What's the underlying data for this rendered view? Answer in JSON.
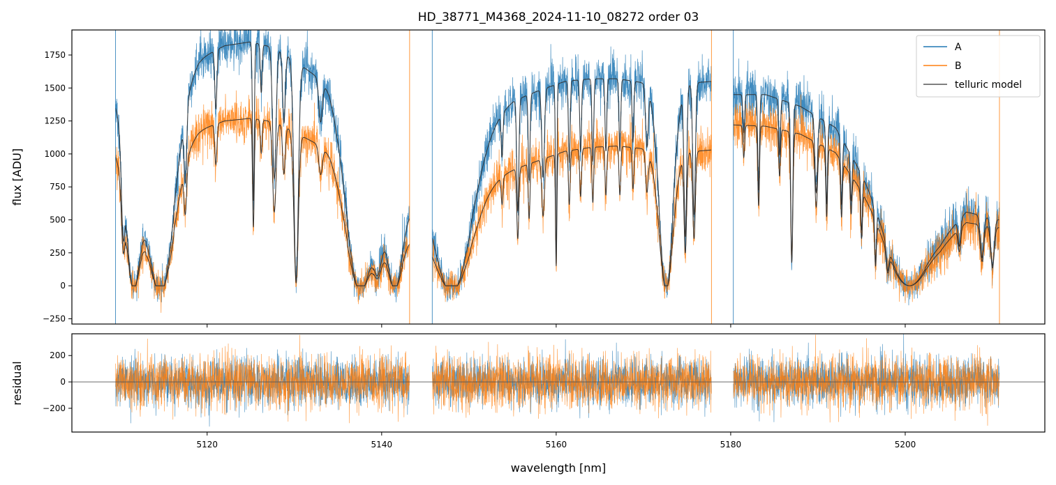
{
  "chart_data": {
    "type": "line",
    "title": "HD_38771_M4368_2024-11-10_08272  order 03",
    "xlabel": "wavelength [nm]",
    "xlim": [
      5104.5,
      5216
    ],
    "x_ticks": [
      5120,
      5140,
      5160,
      5180,
      5200
    ],
    "x_tick_labels": [
      "5120",
      "5140",
      "5160",
      "5180",
      "5200"
    ],
    "colors": {
      "A": "#1f77b4",
      "B": "#ff7f0e",
      "model": "#333333"
    },
    "segments": [
      [
        5109.5,
        5143.2
      ],
      [
        5145.8,
        5177.8
      ],
      [
        5180.3,
        5210.8
      ]
    ],
    "top_panel": {
      "ylabel": "flux [ADU]",
      "ylim": [
        -290,
        1940
      ],
      "y_ticks": [
        -250,
        0,
        250,
        500,
        750,
        1000,
        1250,
        1500,
        1750
      ],
      "y_tick_labels": [
        "−250",
        "0",
        "250",
        "500",
        "750",
        "1000",
        "1250",
        "1500",
        "1750"
      ],
      "legend": {
        "position": "top-right",
        "entries": [
          "A",
          "B",
          "telluric model"
        ]
      },
      "continuum_A": [
        [
          5109.5,
          1450
        ],
        [
          5111,
          1500
        ],
        [
          5113,
          1200
        ],
        [
          5116,
          1500
        ],
        [
          5119,
          1720
        ],
        [
          5122,
          1820
        ],
        [
          5125,
          1850
        ],
        [
          5128,
          1800
        ],
        [
          5131,
          1660
        ],
        [
          5134,
          1520
        ],
        [
          5136,
          1250
        ],
        [
          5138,
          900
        ],
        [
          5140,
          700
        ],
        [
          5143.2,
          680
        ],
        [
          5145.8,
          1000
        ],
        [
          5150,
          1150
        ],
        [
          5152,
          1250
        ],
        [
          5155,
          1400
        ],
        [
          5158,
          1480
        ],
        [
          5161,
          1550
        ],
        [
          5164,
          1570
        ],
        [
          5167,
          1570
        ],
        [
          5170,
          1540
        ],
        [
          5173,
          1500
        ],
        [
          5176,
          1540
        ],
        [
          5177.8,
          1550
        ],
        [
          5180.3,
          1450
        ],
        [
          5184,
          1450
        ],
        [
          5188,
          1360
        ],
        [
          5192,
          1200
        ],
        [
          5195,
          850
        ],
        [
          5198,
          450
        ],
        [
          5200,
          280
        ],
        [
          5204,
          350
        ],
        [
          5207,
          560
        ],
        [
          5210.8,
          500
        ]
      ],
      "continuum_B": [
        [
          5109.5,
          1050
        ],
        [
          5111,
          1080
        ],
        [
          5113,
          900
        ],
        [
          5116,
          1050
        ],
        [
          5119,
          1180
        ],
        [
          5122,
          1250
        ],
        [
          5125,
          1270
        ],
        [
          5128,
          1240
        ],
        [
          5131,
          1130
        ],
        [
          5134,
          1030
        ],
        [
          5136,
          850
        ],
        [
          5138,
          620
        ],
        [
          5140,
          480
        ],
        [
          5143.2,
          420
        ],
        [
          5145.8,
          600
        ],
        [
          5150,
          720
        ],
        [
          5152,
          800
        ],
        [
          5155,
          880
        ],
        [
          5158,
          950
        ],
        [
          5161,
          1020
        ],
        [
          5164,
          1050
        ],
        [
          5167,
          1060
        ],
        [
          5170,
          1040
        ],
        [
          5173,
          1000
        ],
        [
          5176,
          1020
        ],
        [
          5177.8,
          1030
        ],
        [
          5180.3,
          1220
        ],
        [
          5184,
          1210
        ],
        [
          5188,
          1150
        ],
        [
          5192,
          1010
        ],
        [
          5195,
          720
        ],
        [
          5198,
          380
        ],
        [
          5200,
          230
        ],
        [
          5204,
          300
        ],
        [
          5207,
          480
        ],
        [
          5210.8,
          440
        ]
      ],
      "absorption_lines": [
        [
          5110.4,
          0.6,
          0.2
        ],
        [
          5111.6,
          0.98,
          0.9
        ],
        [
          5114.6,
          1.0,
          1.6
        ],
        [
          5117.5,
          0.4,
          0.15
        ],
        [
          5121.0,
          0.25,
          0.12
        ],
        [
          5125.3,
          0.65,
          0.1
        ],
        [
          5126.2,
          0.2,
          0.1
        ],
        [
          5127.7,
          0.55,
          0.2
        ],
        [
          5128.8,
          0.3,
          0.15
        ],
        [
          5130.2,
          0.98,
          0.25
        ],
        [
          5133.0,
          0.2,
          0.2
        ],
        [
          5137.6,
          1.0,
          1.5
        ],
        [
          5139.5,
          0.8,
          0.5
        ],
        [
          5141.5,
          1.0,
          0.9
        ],
        [
          5148.0,
          1.0,
          2.2
        ],
        [
          5153.8,
          0.25,
          0.1
        ],
        [
          5155.6,
          0.6,
          0.12
        ],
        [
          5156.9,
          0.45,
          0.1
        ],
        [
          5158.5,
          0.45,
          0.15
        ],
        [
          5160.0,
          0.85,
          0.08
        ],
        [
          5161.5,
          0.4,
          0.1
        ],
        [
          5162.8,
          0.35,
          0.1
        ],
        [
          5164.2,
          0.4,
          0.1
        ],
        [
          5165.7,
          0.35,
          0.1
        ],
        [
          5167.3,
          0.35,
          0.1
        ],
        [
          5168.8,
          0.3,
          0.1
        ],
        [
          5170.4,
          0.3,
          0.15
        ],
        [
          5172.6,
          0.98,
          0.8
        ],
        [
          5174.8,
          0.75,
          0.15
        ],
        [
          5175.8,
          0.65,
          0.15
        ],
        [
          5181.5,
          0.2,
          0.1
        ],
        [
          5183.2,
          0.5,
          0.1
        ],
        [
          5185.6,
          0.3,
          0.1
        ],
        [
          5187.0,
          0.85,
          0.12
        ],
        [
          5189.8,
          0.45,
          0.15
        ],
        [
          5191.0,
          0.5,
          0.1
        ],
        [
          5192.7,
          0.45,
          0.1
        ],
        [
          5193.8,
          0.35,
          0.1
        ],
        [
          5195.0,
          0.5,
          0.1
        ],
        [
          5196.6,
          0.7,
          0.1
        ],
        [
          5198.0,
          0.6,
          0.15
        ],
        [
          5200.5,
          0.95,
          1.8
        ],
        [
          5206.2,
          0.4,
          0.15
        ],
        [
          5208.8,
          0.6,
          0.2
        ],
        [
          5210.0,
          0.7,
          0.2
        ]
      ],
      "noise_sigma": {
        "A": 90,
        "B": 85
      }
    },
    "bottom_panel": {
      "ylabel": "residual",
      "ylim": [
        -380,
        365
      ],
      "y_ticks": [
        -200,
        0,
        200
      ],
      "y_tick_labels": [
        "−200",
        "0",
        "200"
      ],
      "reference_line": 0,
      "noise_sigma": {
        "A": 90,
        "B": 100
      }
    }
  }
}
